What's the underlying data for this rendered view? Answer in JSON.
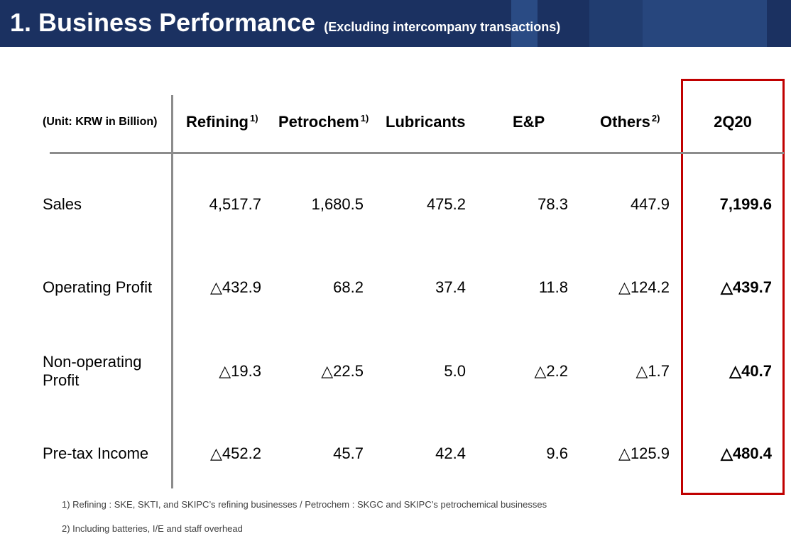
{
  "header": {
    "title": "1. Business Performance",
    "subtitle": "(Excluding intercompany transactions)"
  },
  "table": {
    "unit_label": "(Unit: KRW in Billion)",
    "columns": [
      {
        "label": "Refining",
        "note": "1)"
      },
      {
        "label": "Petrochem",
        "note": "1)"
      },
      {
        "label": "Lubricants"
      },
      {
        "label": "E&P"
      },
      {
        "label": "Others",
        "note": "2)"
      },
      {
        "label": "2Q20"
      }
    ],
    "rows": [
      {
        "label": "Sales",
        "values": [
          "4,517.7",
          "1,680.5",
          "475.2",
          "78.3",
          "447.9",
          "7,199.6"
        ]
      },
      {
        "label": "Operating Profit",
        "values": [
          "△432.9",
          "68.2",
          "37.4",
          "11.8",
          "△124.2",
          "△439.7"
        ]
      },
      {
        "label": "Non-operating Profit",
        "values": [
          "△19.3",
          "△22.5",
          "5.0",
          "△2.2",
          "△1.7",
          "△40.7"
        ]
      },
      {
        "label": "Pre-tax Income",
        "values": [
          "△452.2",
          "45.7",
          "42.4",
          "9.6",
          "△125.9",
          "△480.4"
        ]
      }
    ]
  },
  "footnotes": [
    "1) Refining : SKE, SKTI, and SKIPC’s refining businesses / Petrochem : SKGC and SKIPC’s petrochemical businesses",
    "2) Including batteries, I/E and staff overhead"
  ],
  "colors": {
    "header_bg": "#1b3161",
    "header_accent": "#2a4b84",
    "header_shade": "#213d70",
    "header_accent_soft": "#27467d",
    "header_text": "#ffffff",
    "highlight_border": "#c00000",
    "divider": "#8c8c8c",
    "text": "#000000",
    "footnote_text": "#404040"
  }
}
